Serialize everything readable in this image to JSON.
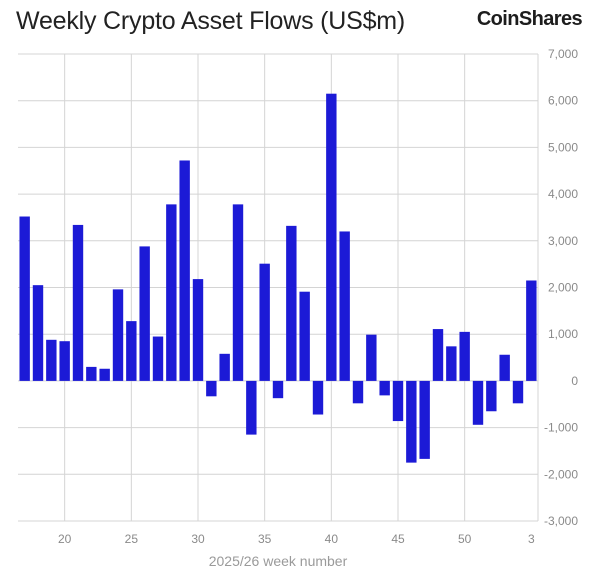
{
  "header": {
    "title": "Weekly Crypto Asset Flows (US$m)",
    "brand": "CoinShares"
  },
  "colors": {
    "bar": "#1c1ad6",
    "grid": "#d4d4d4",
    "tick_text": "#8a8a8a",
    "title_text": "#222222"
  },
  "chart_data": {
    "type": "bar",
    "title": "Weekly Crypto Asset Flows (US$m)",
    "xlabel": "2025/26 week number",
    "ylabel": "",
    "ylim": [
      -3000,
      7000
    ],
    "yticks": [
      7000,
      6000,
      5000,
      4000,
      3000,
      2000,
      1000,
      0,
      -1000,
      -2000,
      -3000
    ],
    "ytick_labels": [
      "7,000",
      "6,000",
      "5,000",
      "4,000",
      "3,000",
      "2,000",
      "1,000",
      "0",
      "-1,000",
      "-2,000",
      "-3,000"
    ],
    "xtick_labels": [
      "20",
      "25",
      "30",
      "35",
      "40",
      "45",
      "50",
      "3"
    ],
    "grid": true,
    "legend": "none",
    "categories": [
      "17",
      "18",
      "19",
      "20",
      "21",
      "22",
      "23",
      "24",
      "25",
      "26",
      "27",
      "28",
      "29",
      "30",
      "31",
      "32",
      "33",
      "34",
      "35",
      "36",
      "37",
      "38",
      "39",
      "40",
      "41",
      "42",
      "43",
      "44",
      "45",
      "46",
      "47",
      "48",
      "49",
      "50",
      "51",
      "52",
      "1",
      "2",
      "3"
    ],
    "values": [
      3520,
      2050,
      880,
      850,
      3340,
      300,
      260,
      1960,
      1280,
      2880,
      950,
      3780,
      4720,
      2180,
      -330,
      580,
      3780,
      -1150,
      2510,
      -370,
      3320,
      1910,
      -720,
      6150,
      3200,
      -480,
      990,
      -310,
      -860,
      -1750,
      -1670,
      1110,
      740,
      1050,
      -940,
      -650,
      560,
      -480,
      2150
    ]
  }
}
